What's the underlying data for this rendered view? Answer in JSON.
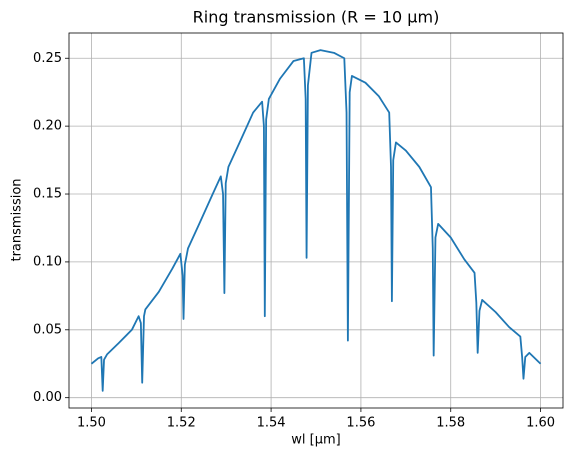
{
  "chart_data": {
    "type": "line",
    "title": "Ring transmission (R = 10 μm)",
    "x_label": "wl [μm]",
    "y_label": "transmission",
    "grid": true,
    "xlim": [
      1.495,
      1.605
    ],
    "ylim": [
      -0.0076,
      0.2686
    ],
    "xticks": [
      {
        "value": 1.5,
        "label": "1.50"
      },
      {
        "value": 1.52,
        "label": "1.52"
      },
      {
        "value": 1.54,
        "label": "1.54"
      },
      {
        "value": 1.56,
        "label": "1.56"
      },
      {
        "value": 1.58,
        "label": "1.58"
      },
      {
        "value": 1.6,
        "label": "1.60"
      }
    ],
    "yticks": [
      {
        "value": 0,
        "label": "0.00"
      },
      {
        "value": 0.05,
        "label": "0.05"
      },
      {
        "value": 0.1,
        "label": "0.10"
      },
      {
        "value": 0.15,
        "label": "0.15"
      },
      {
        "value": 0.2,
        "label": "0.20"
      },
      {
        "value": 0.25,
        "label": "0.25"
      }
    ],
    "series": [
      {
        "color": "#1f77b4",
        "x": [
          1.5,
          1.5015,
          1.5022,
          1.5025,
          1.5028,
          1.5035,
          1.506,
          1.509,
          1.5105,
          1.511,
          1.5113,
          1.5117,
          1.512,
          1.515,
          1.518,
          1.5198,
          1.5203,
          1.5205,
          1.5208,
          1.5215,
          1.524,
          1.527,
          1.5288,
          1.5293,
          1.5296,
          1.5299,
          1.5305,
          1.533,
          1.536,
          1.538,
          1.5384,
          1.5386,
          1.5389,
          1.5395,
          1.542,
          1.545,
          1.5473,
          1.5477,
          1.5479,
          1.5482,
          1.549,
          1.551,
          1.554,
          1.5563,
          1.5568,
          1.5571,
          1.5575,
          1.558,
          1.561,
          1.564,
          1.5663,
          1.5667,
          1.5669,
          1.5672,
          1.5678,
          1.57,
          1.573,
          1.5756,
          1.576,
          1.5762,
          1.5766,
          1.5772,
          1.58,
          1.583,
          1.5853,
          1.5857,
          1.586,
          1.5864,
          1.587,
          1.59,
          1.593,
          1.5955,
          1.5959,
          1.5962,
          1.5966,
          1.5975,
          1.6
        ],
        "values": [
          0.025,
          0.029,
          0.03,
          0.005,
          0.028,
          0.032,
          0.04,
          0.05,
          0.06,
          0.055,
          0.011,
          0.06,
          0.065,
          0.078,
          0.095,
          0.106,
          0.09,
          0.058,
          0.098,
          0.11,
          0.128,
          0.15,
          0.163,
          0.15,
          0.077,
          0.158,
          0.17,
          0.188,
          0.21,
          0.218,
          0.2,
          0.06,
          0.205,
          0.22,
          0.235,
          0.248,
          0.25,
          0.22,
          0.103,
          0.23,
          0.254,
          0.256,
          0.254,
          0.25,
          0.21,
          0.042,
          0.225,
          0.237,
          0.232,
          0.222,
          0.21,
          0.17,
          0.071,
          0.175,
          0.188,
          0.182,
          0.17,
          0.155,
          0.11,
          0.031,
          0.118,
          0.128,
          0.118,
          0.102,
          0.092,
          0.07,
          0.033,
          0.064,
          0.072,
          0.063,
          0.052,
          0.045,
          0.03,
          0.014,
          0.03,
          0.033,
          0.025
        ]
      }
    ]
  }
}
